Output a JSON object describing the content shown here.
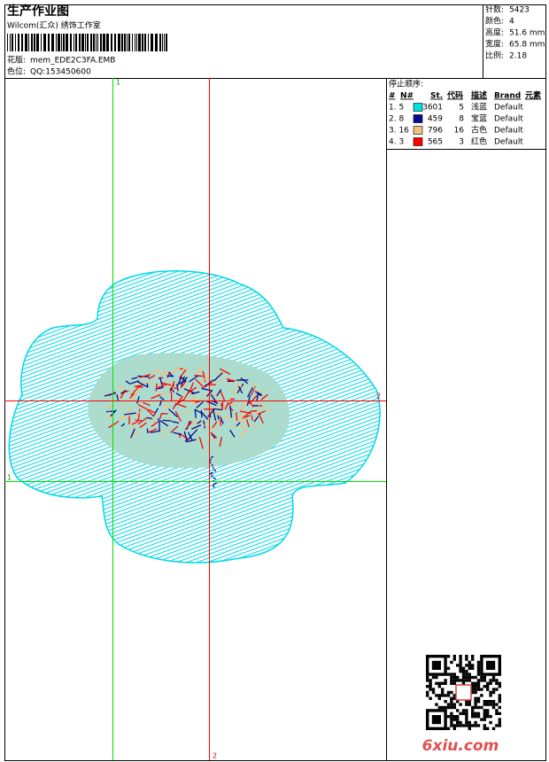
{
  "header": {
    "title": "生产作业图",
    "studio": "Wilcom(汇众) 绣饰工作室",
    "design_label": "花版:",
    "design_file": "mem_EDE2C3FA.EMB",
    "color_label": "色位:",
    "color_value": "QQ:153450600"
  },
  "stats": [
    {
      "label": "针数:",
      "value": "5423"
    },
    {
      "label": "颜色:",
      "value": "4"
    },
    {
      "label": "高度:",
      "value": "51.6 mm"
    },
    {
      "label": "宽度:",
      "value": "65.8 mm"
    },
    {
      "label": "比例:",
      "value": "2.18"
    }
  ],
  "guides": {
    "green": "1",
    "red": "2"
  },
  "stop_sequence": {
    "title": "停止顺序:",
    "columns": [
      "#",
      "N#",
      "St.",
      "代码",
      "描述",
      "Brand",
      "元素"
    ],
    "rows": [
      {
        "index": "1. 5",
        "color": "#00e0e0",
        "stitches": "3601",
        "code": "5",
        "description": "浅蓝",
        "brand": "Default"
      },
      {
        "index": "2. 8",
        "color": "#0a0a8c",
        "stitches": "459",
        "code": "8",
        "description": "宝蓝",
        "brand": "Default"
      },
      {
        "index": "3. 16",
        "color": "#f0c080",
        "stitches": "796",
        "code": "16",
        "description": "古色",
        "brand": "Default"
      },
      {
        "index": "4. 3",
        "color": "#ff0000",
        "stitches": "565",
        "code": "3",
        "description": "红色",
        "brand": "Default"
      }
    ]
  },
  "watermark": "6xiu.com"
}
